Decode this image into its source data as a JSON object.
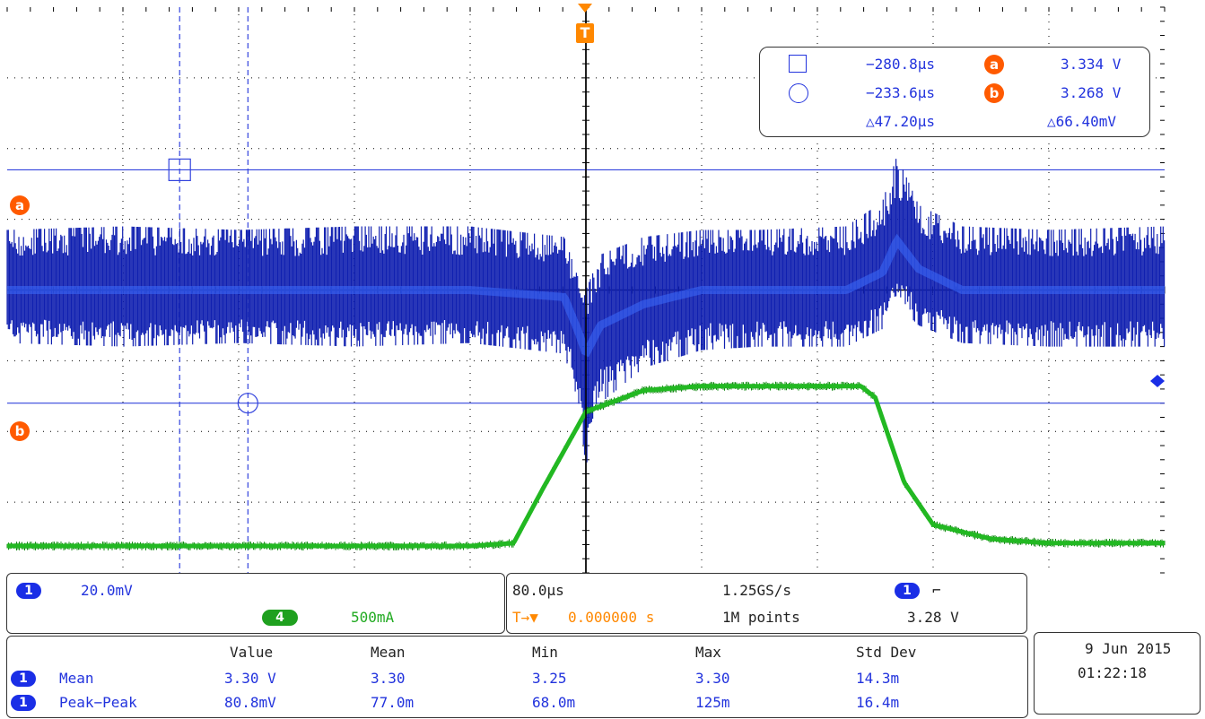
{
  "cursor_readout": {
    "a_time": "−280.8µs",
    "a_marker": "a",
    "a_value": "3.334 V",
    "b_time": "−233.6µs",
    "b_marker": "b",
    "b_value": "3.268 V",
    "delta_time": "△47.20µs",
    "delta_value": "△66.40mV"
  },
  "trigger_marker": "T",
  "cursor_labels": {
    "a": "a",
    "b": "b"
  },
  "channel_panel": {
    "ch1_badge": "1",
    "ch1_scale": "20.0mV",
    "ch4_badge": "4",
    "ch4_scale": "500mA"
  },
  "timebase_panel": {
    "time_per_div": "80.0µs",
    "sample_rate": "1.25GS/s",
    "trigger_position_prefix": "T→▼",
    "trigger_position": "0.000000 s",
    "record_length": "1M points",
    "trigger_source": "1",
    "trigger_slope": "⌐",
    "trigger_level": "3.28 V"
  },
  "measurements": {
    "headers": [
      "Value",
      "Mean",
      "Min",
      "Max",
      "Std Dev"
    ],
    "rows": [
      {
        "channel": "1",
        "name": "Mean",
        "cells": [
          "3.30 V",
          "3.30",
          "3.25",
          "3.30",
          "14.3m"
        ]
      },
      {
        "channel": "1",
        "name": "Peak−Peak",
        "cells": [
          "80.8mV",
          "77.0m",
          "68.0m",
          "125m",
          "16.4m"
        ]
      }
    ]
  },
  "datetime": {
    "date": "9 Jun  2015",
    "time": "01:22:18"
  },
  "colors": {
    "ch1": "#1a2ee6",
    "ch4": "#22b822",
    "cursor": "#3344dd",
    "trigger": "#ff8800",
    "grid": "#000000"
  },
  "chart_data": {
    "type": "line",
    "title": "",
    "xlabel": "",
    "ylabel": "",
    "x_unit": "µs",
    "xlim": [
      -400,
      400
    ],
    "grid": true,
    "series": [
      {
        "name": "",
        "channel": "1",
        "scale": "20.0mV/div",
        "mean_level_V": 3.3,
        "x": [
          -400,
          -320,
          -240,
          -160,
          -80,
          -15,
          -5,
          0,
          10,
          40,
          80,
          120,
          180,
          205,
          215,
          230,
          260,
          320,
          400
        ],
        "y_center": [
          3.3,
          3.3,
          3.3,
          3.3,
          3.3,
          3.298,
          3.288,
          3.282,
          3.29,
          3.296,
          3.3,
          3.3,
          3.3,
          3.305,
          3.314,
          3.306,
          3.3,
          3.3,
          3.3
        ],
        "y_max": [
          3.317,
          3.318,
          3.317,
          3.318,
          3.318,
          3.315,
          3.303,
          3.3,
          3.31,
          3.315,
          3.317,
          3.317,
          3.318,
          3.325,
          3.338,
          3.324,
          3.318,
          3.317,
          3.318
        ],
        "y_min": [
          3.285,
          3.284,
          3.285,
          3.284,
          3.285,
          3.282,
          3.268,
          3.25,
          3.268,
          3.278,
          3.283,
          3.284,
          3.284,
          3.289,
          3.296,
          3.29,
          3.285,
          3.284,
          3.284
        ]
      },
      {
        "name": "",
        "channel": "4",
        "scale": "500mA/div",
        "x": [
          -400,
          -80,
          -50,
          -30,
          0,
          40,
          80,
          160,
          190,
          200,
          220,
          240,
          280,
          320,
          400
        ],
        "y_A": [
          0.0,
          0.0,
          0.02,
          0.4,
          0.95,
          1.1,
          1.13,
          1.13,
          1.13,
          1.05,
          0.45,
          0.15,
          0.05,
          0.02,
          0.02
        ]
      }
    ],
    "cursors": {
      "a_time_us": -280.8,
      "a_level_V": 3.334,
      "b_time_us": -233.6,
      "b_level_V": 3.268
    }
  }
}
